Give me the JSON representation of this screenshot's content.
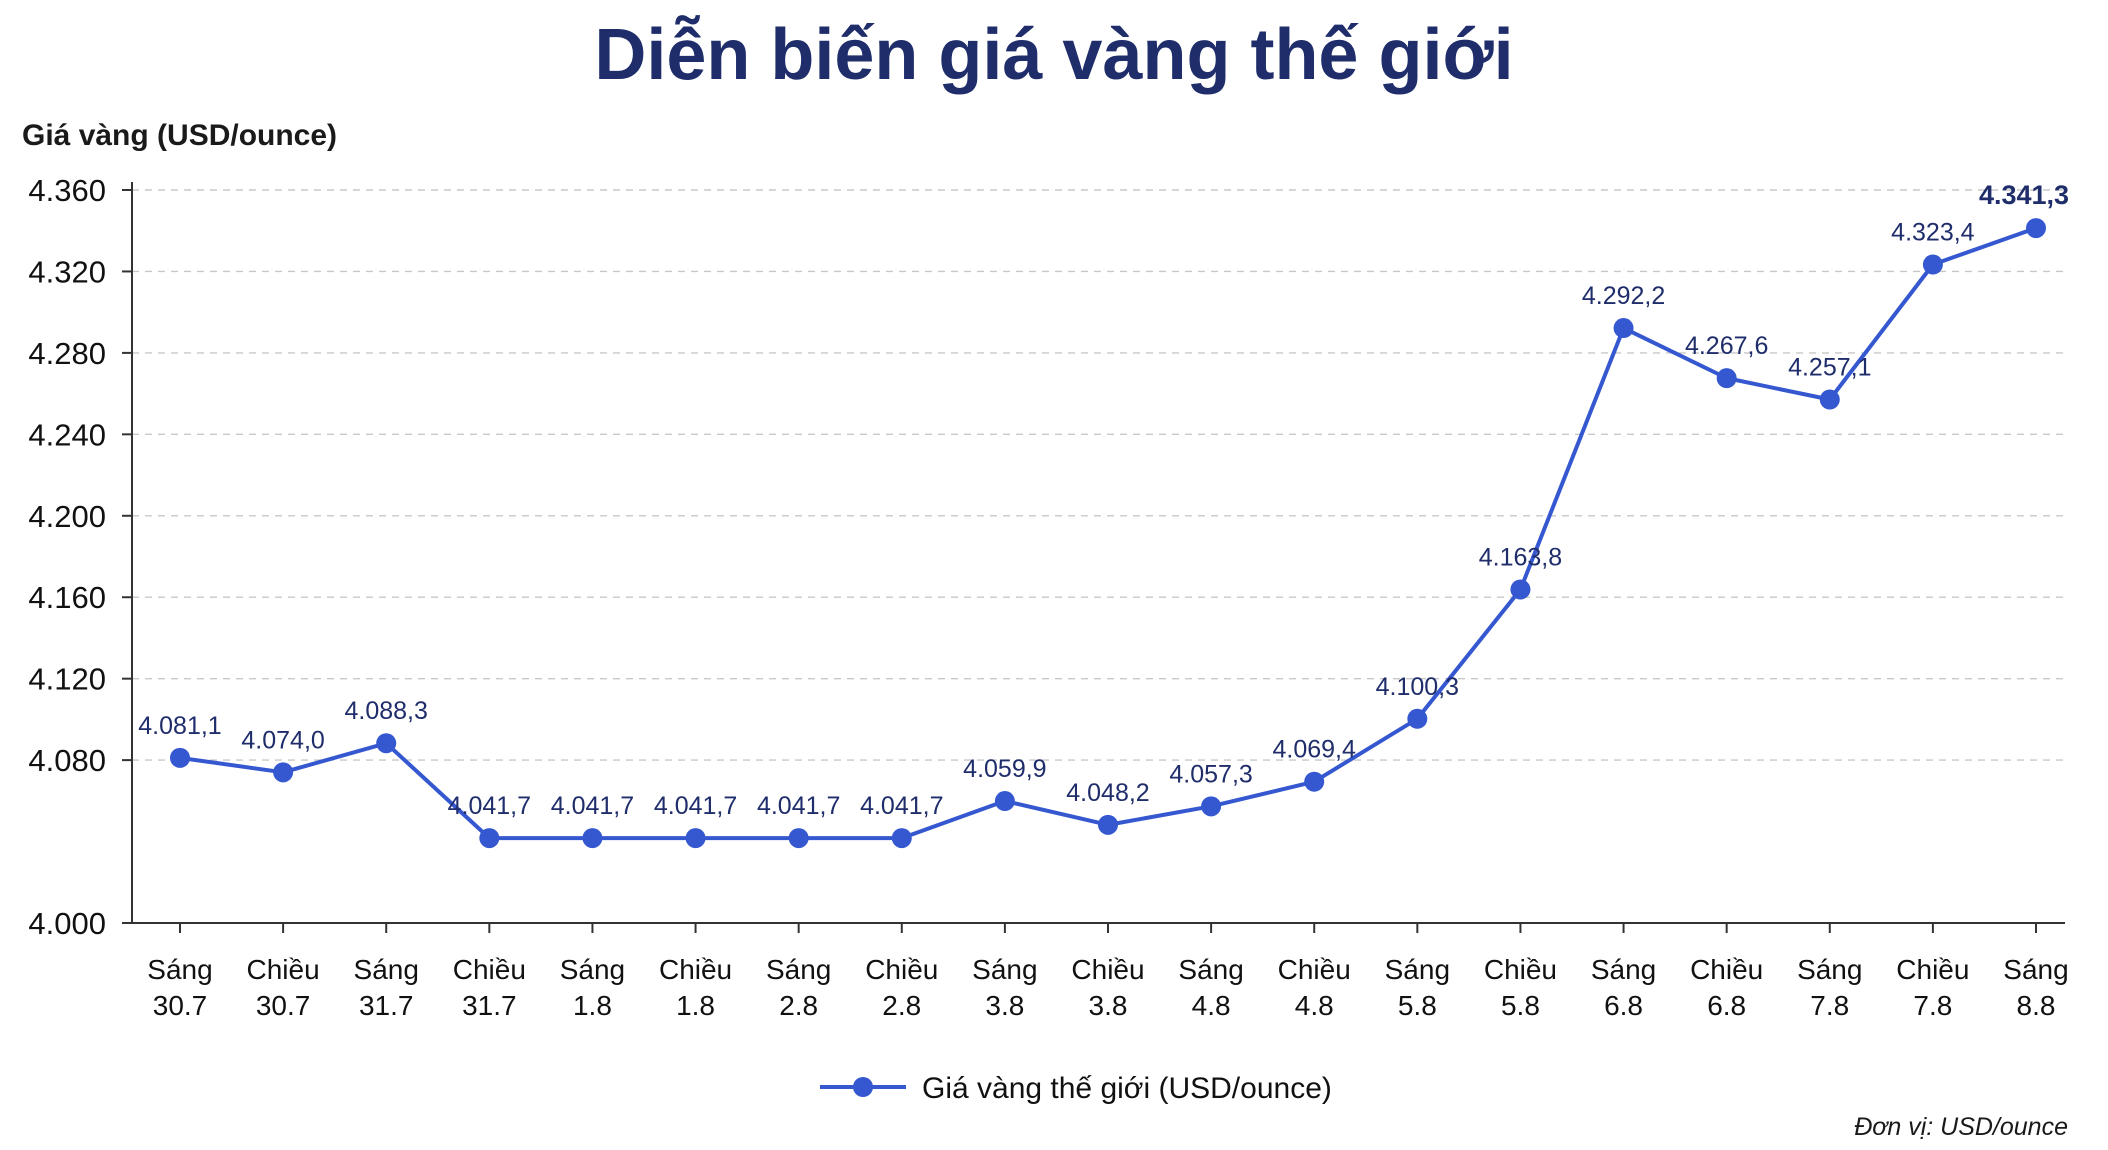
{
  "chart_data": {
    "type": "line",
    "title": "Diễn biến giá vàng thế giới",
    "ylabel": "Giá vàng (USD/ounce)",
    "xlabel": "",
    "ylim": [
      4000,
      4360
    ],
    "yticks": [
      "4.000",
      "4.080",
      "4.120",
      "4.160",
      "4.200",
      "4.240",
      "4.280",
      "4.320",
      "4.360"
    ],
    "ytick_values": [
      4000,
      4080,
      4120,
      4160,
      4200,
      4240,
      4280,
      4320,
      4360
    ],
    "grid": true,
    "legend_position": "bottom-center",
    "unit_note": "Đơn vị: USD/ounce",
    "categories": [
      [
        "Sáng",
        "30.7"
      ],
      [
        "Chiều",
        "30.7"
      ],
      [
        "Sáng",
        "31.7"
      ],
      [
        "Chiều",
        "31.7"
      ],
      [
        "Sáng",
        "1.8"
      ],
      [
        "Chiều",
        "1.8"
      ],
      [
        "Sáng",
        "2.8"
      ],
      [
        "Chiều",
        "2.8"
      ],
      [
        "Sáng",
        "3.8"
      ],
      [
        "Chiều",
        "3.8"
      ],
      [
        "Sáng",
        "4.8"
      ],
      [
        "Chiều",
        "4.8"
      ],
      [
        "Sáng",
        "5.8"
      ],
      [
        "Chiều",
        "5.8"
      ],
      [
        "Sáng",
        "6.8"
      ],
      [
        "Chiều",
        "6.8"
      ],
      [
        "Sáng",
        "7.8"
      ],
      [
        "Chiều",
        "7.8"
      ],
      [
        "Sáng",
        "8.8"
      ]
    ],
    "series": [
      {
        "name": "Giá vàng thế giới (USD/ounce)",
        "color": "#3558d0",
        "values": [
          4081.1,
          4074.0,
          4088.3,
          4041.7,
          4041.7,
          4041.7,
          4041.7,
          4041.7,
          4059.9,
          4048.2,
          4057.3,
          4069.4,
          4100.3,
          4163.8,
          4292.2,
          4267.6,
          4257.1,
          4323.4,
          4341.3
        ],
        "labels": [
          "4.081,1",
          "4.074,0",
          "4.088,3",
          "4.041,7",
          "4.041,7",
          "4.041,7",
          "4.041,7",
          "4.041,7",
          "4.059,9",
          "4.048,2",
          "4.057,3",
          "4.069,4",
          "4.100,3",
          "4.163,8",
          "4.292,2",
          "4.267,6",
          "4.257,1",
          "4.323,4",
          "4.341,3"
        ]
      }
    ]
  }
}
